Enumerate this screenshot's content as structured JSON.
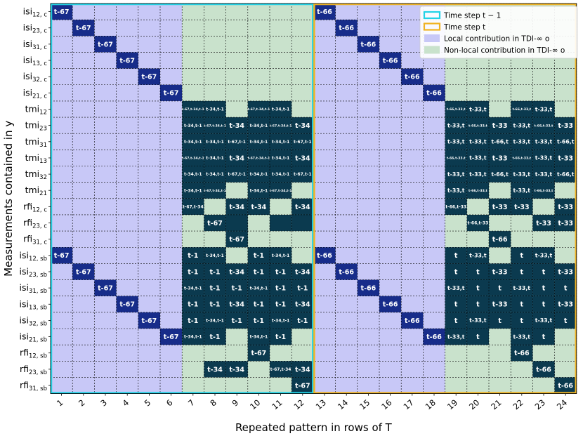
{
  "chart_data": {
    "type": "heatmap",
    "xlabel": "Repeated pattern in rows of T",
    "ylabel": "Measurements contained in y",
    "columns": [
      "1",
      "2",
      "3",
      "4",
      "5",
      "6",
      "7",
      "8",
      "9",
      "10",
      "11",
      "12",
      "13",
      "14",
      "15",
      "16",
      "17",
      "18",
      "19",
      "20",
      "21",
      "22",
      "23",
      "24"
    ],
    "rows": [
      {
        "base": "isi",
        "sub": "12, c"
      },
      {
        "base": "isi",
        "sub": "23, c"
      },
      {
        "base": "isi",
        "sub": "31, c"
      },
      {
        "base": "isi",
        "sub": "13, c"
      },
      {
        "base": "isi",
        "sub": "32, c"
      },
      {
        "base": "isi",
        "sub": "21, c"
      },
      {
        "base": "tmi",
        "sub": "12"
      },
      {
        "base": "tmi",
        "sub": "23"
      },
      {
        "base": "tmi",
        "sub": "31"
      },
      {
        "base": "tmi",
        "sub": "13"
      },
      {
        "base": "tmi",
        "sub": "32"
      },
      {
        "base": "tmi",
        "sub": "21"
      },
      {
        "base": "rfi",
        "sub": "12, c"
      },
      {
        "base": "rfi",
        "sub": "23, c"
      },
      {
        "base": "rfi",
        "sub": "31, c"
      },
      {
        "base": "isi",
        "sub": "12, sb"
      },
      {
        "base": "isi",
        "sub": "23, sb"
      },
      {
        "base": "isi",
        "sub": "31, sb"
      },
      {
        "base": "isi",
        "sub": "13, sb"
      },
      {
        "base": "isi",
        "sub": "32, sb"
      },
      {
        "base": "isi",
        "sub": "21, sb"
      },
      {
        "base": "rfi",
        "sub": "12, sb"
      },
      {
        "base": "rfi",
        "sub": "23, sb"
      },
      {
        "base": "rfi",
        "sub": "31, sb"
      }
    ],
    "regions": {
      "local_columns": [
        1,
        2,
        3,
        4,
        5,
        6,
        13,
        14,
        15,
        16,
        17,
        18
      ],
      "nonlocal_columns": [
        7,
        8,
        9,
        10,
        11,
        12,
        19,
        20,
        21,
        22,
        23,
        24
      ]
    },
    "block_categories": {
      "time_step_t_minus_1": [
        1,
        12
      ],
      "time_step_t": [
        13,
        24
      ]
    },
    "cells": [
      [
        1,
        1,
        "t-67"
      ],
      [
        1,
        13,
        "t-66"
      ],
      [
        2,
        2,
        "t-67"
      ],
      [
        2,
        14,
        "t-66"
      ],
      [
        3,
        3,
        "t-67"
      ],
      [
        3,
        15,
        "t-66"
      ],
      [
        4,
        4,
        "t-67"
      ],
      [
        4,
        16,
        "t-66"
      ],
      [
        5,
        5,
        "t-67"
      ],
      [
        5,
        17,
        "t-66"
      ],
      [
        6,
        6,
        "t-67"
      ],
      [
        6,
        18,
        "t-66"
      ],
      [
        7,
        7,
        "t-67,t-34,t-1"
      ],
      [
        7,
        8,
        "t-34,t-1"
      ],
      [
        7,
        10,
        "t-67,t-34,t-1"
      ],
      [
        7,
        11,
        "t-34,t-1"
      ],
      [
        7,
        19,
        "t-66,t-33,t"
      ],
      [
        7,
        20,
        "t-33,t"
      ],
      [
        7,
        22,
        "t-66,t-33,t"
      ],
      [
        7,
        23,
        "t-33,t"
      ],
      [
        8,
        7,
        "t-34,t-1"
      ],
      [
        8,
        8,
        "t-67,t-34,t-1"
      ],
      [
        8,
        9,
        "t-34"
      ],
      [
        8,
        10,
        "t-34,t-1"
      ],
      [
        8,
        11,
        "t-67,t-34,t-1"
      ],
      [
        8,
        12,
        "t-34"
      ],
      [
        8,
        19,
        "t-33,t"
      ],
      [
        8,
        20,
        "t-66,t-33,t"
      ],
      [
        8,
        21,
        "t-33"
      ],
      [
        8,
        22,
        "t-33,t"
      ],
      [
        8,
        23,
        "t-66,t-33,t"
      ],
      [
        8,
        24,
        "t-33"
      ],
      [
        9,
        7,
        "t-34,t-1"
      ],
      [
        9,
        8,
        "t-34,t-1"
      ],
      [
        9,
        9,
        "t-67,t-1"
      ],
      [
        9,
        10,
        "t-34,t-1"
      ],
      [
        9,
        11,
        "t-34,t-1"
      ],
      [
        9,
        12,
        "t-67,t-1"
      ],
      [
        9,
        19,
        "t-33,t"
      ],
      [
        9,
        20,
        "t-33,t"
      ],
      [
        9,
        21,
        "t-66,t"
      ],
      [
        9,
        22,
        "t-33,t"
      ],
      [
        9,
        23,
        "t-33,t"
      ],
      [
        9,
        24,
        "t-66,t"
      ],
      [
        10,
        7,
        "t-67,t-34,t-1"
      ],
      [
        10,
        8,
        "t-34,t-1"
      ],
      [
        10,
        9,
        "t-34"
      ],
      [
        10,
        10,
        "t-67,t-34,t-1"
      ],
      [
        10,
        11,
        "t-34,t-1"
      ],
      [
        10,
        12,
        "t-34"
      ],
      [
        10,
        19,
        "t-66,t-33,t"
      ],
      [
        10,
        20,
        "t-33,t"
      ],
      [
        10,
        21,
        "t-33"
      ],
      [
        10,
        22,
        "t-66,t-33,t"
      ],
      [
        10,
        23,
        "t-33,t"
      ],
      [
        10,
        24,
        "t-33"
      ],
      [
        11,
        7,
        "t-34,t-1"
      ],
      [
        11,
        8,
        "t-34,t-1"
      ],
      [
        11,
        9,
        "t-67,t-1"
      ],
      [
        11,
        10,
        "t-34,t-1"
      ],
      [
        11,
        11,
        "t-34,t-1"
      ],
      [
        11,
        12,
        "t-67,t-1"
      ],
      [
        11,
        19,
        "t-33,t"
      ],
      [
        11,
        20,
        "t-33,t"
      ],
      [
        11,
        21,
        "t-66,t"
      ],
      [
        11,
        22,
        "t-33,t"
      ],
      [
        11,
        23,
        "t-33,t"
      ],
      [
        11,
        24,
        "t-66,t"
      ],
      [
        12,
        7,
        "t-34,t-1"
      ],
      [
        12,
        8,
        "t-67,t-34,t-1"
      ],
      [
        12,
        10,
        "t-34,t-1"
      ],
      [
        12,
        11,
        "t-67,t-34,t-1"
      ],
      [
        12,
        19,
        "t-33,t"
      ],
      [
        12,
        20,
        "t-66,t-33,t"
      ],
      [
        12,
        22,
        "t-33,t"
      ],
      [
        12,
        23,
        "t-66,t-33,t"
      ],
      [
        13,
        7,
        "t-67,t-34"
      ],
      [
        13,
        9,
        "t-34"
      ],
      [
        13,
        10,
        "t-34"
      ],
      [
        13,
        12,
        "t-34"
      ],
      [
        13,
        19,
        "t-66,t-33"
      ],
      [
        13,
        21,
        "t-33"
      ],
      [
        13,
        22,
        "t-33"
      ],
      [
        13,
        24,
        "t-33"
      ],
      [
        14,
        8,
        "t-67"
      ],
      [
        14,
        11,
        ""
      ],
      [
        14,
        20,
        "t-66,t-33"
      ],
      [
        14,
        23,
        "t-33"
      ],
      [
        14,
        24,
        "t-33"
      ],
      [
        14,
        9,
        ""
      ],
      [
        14,
        12,
        ""
      ],
      [
        15,
        9,
        "t-67"
      ],
      [
        15,
        21,
        "t-66"
      ],
      [
        16,
        1,
        "t-67"
      ],
      [
        16,
        7,
        "t-1"
      ],
      [
        16,
        8,
        "t-34,t-1"
      ],
      [
        16,
        10,
        "t-1"
      ],
      [
        16,
        11,
        "t-34,t-1"
      ],
      [
        16,
        13,
        "t-66"
      ],
      [
        16,
        19,
        "t"
      ],
      [
        16,
        20,
        "t-33,t"
      ],
      [
        16,
        22,
        "t"
      ],
      [
        16,
        23,
        "t-33,t"
      ],
      [
        17,
        2,
        "t-67"
      ],
      [
        17,
        7,
        "t-1"
      ],
      [
        17,
        8,
        "t-1"
      ],
      [
        17,
        9,
        "t-34"
      ],
      [
        17,
        10,
        "t-1"
      ],
      [
        17,
        11,
        "t-1"
      ],
      [
        17,
        12,
        "t-34"
      ],
      [
        17,
        14,
        "t-66"
      ],
      [
        17,
        19,
        "t"
      ],
      [
        17,
        20,
        "t"
      ],
      [
        17,
        21,
        "t-33"
      ],
      [
        17,
        22,
        "t"
      ],
      [
        17,
        23,
        "t"
      ],
      [
        17,
        24,
        "t-33"
      ],
      [
        18,
        3,
        "t-67"
      ],
      [
        18,
        7,
        "t-34,t-1"
      ],
      [
        18,
        8,
        "t-1"
      ],
      [
        18,
        9,
        "t-1"
      ],
      [
        18,
        10,
        "t-34,t-1"
      ],
      [
        18,
        11,
        "t-1"
      ],
      [
        18,
        12,
        "t-1"
      ],
      [
        18,
        15,
        "t-66"
      ],
      [
        18,
        19,
        "t-33,t"
      ],
      [
        18,
        20,
        "t"
      ],
      [
        18,
        21,
        "t"
      ],
      [
        18,
        22,
        "t-33,t"
      ],
      [
        18,
        23,
        "t"
      ],
      [
        18,
        24,
        "t"
      ],
      [
        19,
        4,
        "t-67"
      ],
      [
        19,
        7,
        "t-1"
      ],
      [
        19,
        8,
        "t-1"
      ],
      [
        19,
        9,
        "t-34"
      ],
      [
        19,
        10,
        "t-1"
      ],
      [
        19,
        11,
        "t-1"
      ],
      [
        19,
        12,
        "t-34"
      ],
      [
        19,
        16,
        "t-66"
      ],
      [
        19,
        19,
        "t"
      ],
      [
        19,
        20,
        "t"
      ],
      [
        19,
        21,
        "t-33"
      ],
      [
        19,
        22,
        "t"
      ],
      [
        19,
        23,
        "t"
      ],
      [
        19,
        24,
        "t-33"
      ],
      [
        20,
        5,
        "t-67"
      ],
      [
        20,
        7,
        "t-1"
      ],
      [
        20,
        8,
        "t-34,t-1"
      ],
      [
        20,
        9,
        "t-1"
      ],
      [
        20,
        10,
        "t-1"
      ],
      [
        20,
        11,
        "t-34,t-1"
      ],
      [
        20,
        12,
        "t-1"
      ],
      [
        20,
        17,
        "t-66"
      ],
      [
        20,
        19,
        "t"
      ],
      [
        20,
        20,
        "t-33,t"
      ],
      [
        20,
        21,
        "t"
      ],
      [
        20,
        22,
        "t"
      ],
      [
        20,
        23,
        "t-33,t"
      ],
      [
        20,
        24,
        "t"
      ],
      [
        21,
        6,
        "t-67"
      ],
      [
        21,
        7,
        "t-34,t-1"
      ],
      [
        21,
        8,
        "t-1"
      ],
      [
        21,
        10,
        "t-34,t-1"
      ],
      [
        21,
        11,
        "t-1"
      ],
      [
        21,
        18,
        "t-66"
      ],
      [
        21,
        19,
        "t-33,t"
      ],
      [
        21,
        20,
        "t"
      ],
      [
        21,
        22,
        "t-33,t"
      ],
      [
        21,
        23,
        "t"
      ],
      [
        22,
        10,
        "t-67"
      ],
      [
        22,
        22,
        "t-66"
      ],
      [
        23,
        8,
        "t-34"
      ],
      [
        23,
        9,
        "t-34"
      ],
      [
        23,
        11,
        "t-67,t-34"
      ],
      [
        23,
        12,
        "t-34"
      ],
      [
        23,
        23,
        "t-66"
      ],
      [
        24,
        12,
        "t-67"
      ],
      [
        24,
        24,
        "t-66"
      ]
    ],
    "legend": {
      "position": "top-right",
      "items": [
        {
          "label": "Time step t − 1",
          "type": "outline",
          "color": "#22d3e6"
        },
        {
          "label": "Time step t",
          "type": "outline",
          "color": "#f0b323"
        },
        {
          "label": "Local contribution in TDI-∞ o",
          "type": "fill",
          "color": "#c8c8f7"
        },
        {
          "label": "Non-local contribution in TDI-∞ o",
          "type": "fill",
          "color": "#c9e2cc"
        }
      ]
    },
    "colors": {
      "local": "#c8c8f7",
      "nonlocal": "#c9e2cc",
      "diag": "#172c8a",
      "filled": "#0b3a4f",
      "prev_border": "#22d3e6",
      "curr_border": "#f0b323"
    }
  }
}
